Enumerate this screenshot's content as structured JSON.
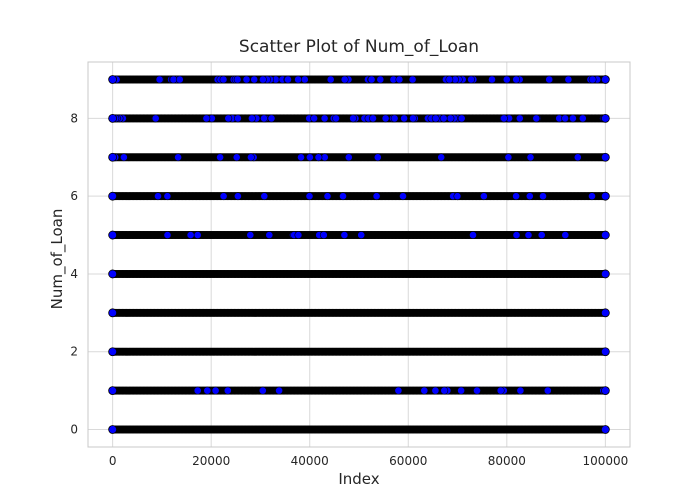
{
  "chart_data": {
    "type": "scatter",
    "title": "Scatter Plot of Num_of_Loan",
    "xlabel": "Index",
    "ylabel": "Num_of_Loan",
    "xlim": [
      -5000,
      105000
    ],
    "ylim": [
      -0.45,
      9.45
    ],
    "x_ticks": [
      0,
      20000,
      40000,
      60000,
      80000,
      100000
    ],
    "x_tick_labels": [
      "0",
      "20000",
      "40000",
      "60000",
      "80000",
      "100000"
    ],
    "y_ticks": [
      0,
      2,
      4,
      6,
      8
    ],
    "y_tick_labels": [
      "0",
      "2",
      "4",
      "6",
      "8"
    ],
    "grid": true,
    "x_range": [
      0,
      100000
    ],
    "levels": [
      {
        "y": 0,
        "density": "dense"
      },
      {
        "y": 1,
        "density": "medium"
      },
      {
        "y": 2,
        "density": "dense"
      },
      {
        "y": 3,
        "density": "dense"
      },
      {
        "y": 4,
        "density": "dense"
      },
      {
        "y": 5,
        "density": "medium"
      },
      {
        "y": 6,
        "density": "medium"
      },
      {
        "y": 7,
        "density": "medium"
      },
      {
        "y": 8,
        "density": "sparse"
      },
      {
        "y": 9,
        "density": "sparse"
      }
    ],
    "colors": {
      "marker_fill": "#0000ff",
      "marker_edge": "#000000",
      "grid": "#d9d9d9",
      "spine": "#c8c8c8"
    }
  }
}
